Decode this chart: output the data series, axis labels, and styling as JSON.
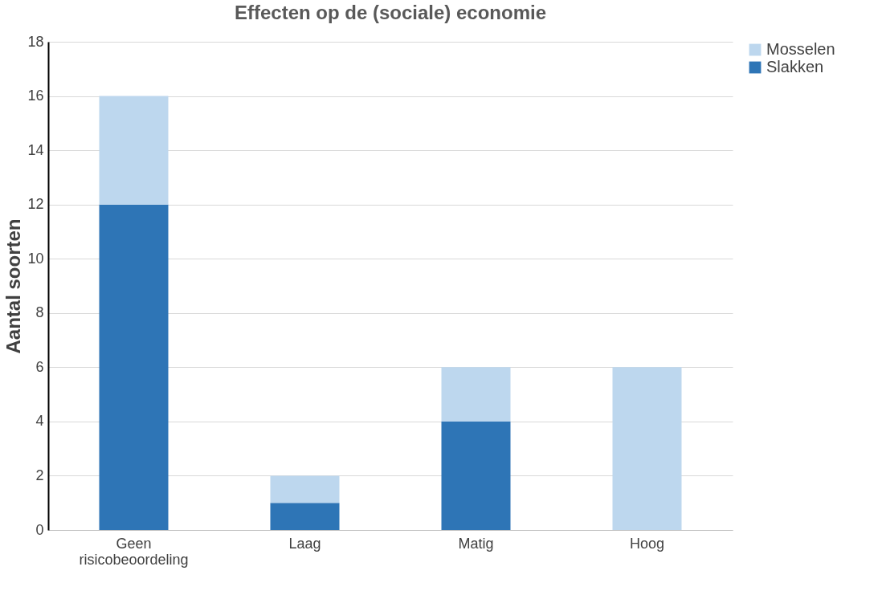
{
  "chart_data": {
    "type": "bar",
    "title": "Effecten op de (sociale) economie",
    "ylabel": "Aantal soorten",
    "categories": [
      "Geen risicobeoordeling",
      "Laag",
      "Matig",
      "Hoog"
    ],
    "stacked": true,
    "series": [
      {
        "name": "Slakken",
        "color": "#2e75b6",
        "values": [
          12,
          1,
          4,
          0
        ]
      },
      {
        "name": "Mosselen",
        "color": "#bdd7ee",
        "values": [
          4,
          1,
          2,
          6
        ]
      }
    ],
    "ylim": [
      0,
      18
    ],
    "yticks": [
      0,
      2,
      4,
      6,
      8,
      10,
      12,
      14,
      16,
      18
    ],
    "grid": "y",
    "legend": "right"
  }
}
